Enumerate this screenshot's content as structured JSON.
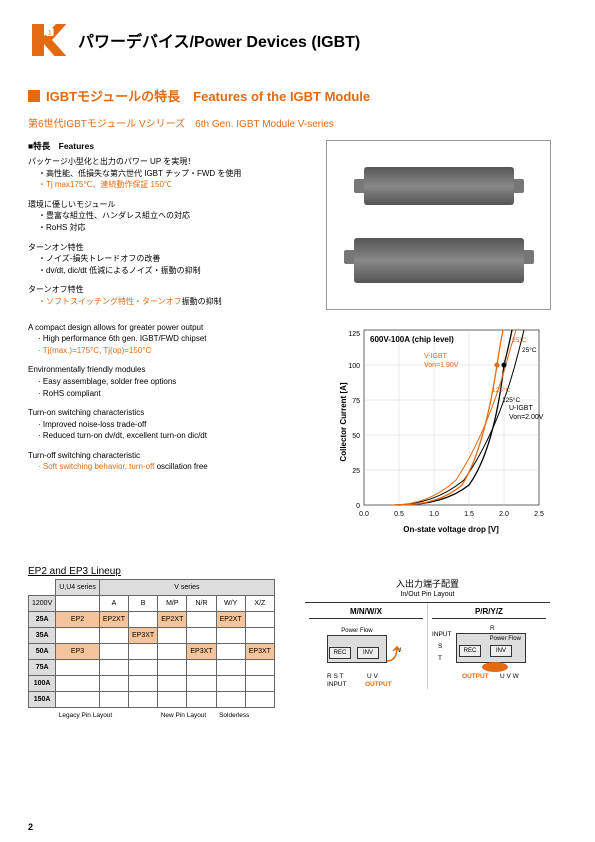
{
  "header": {
    "title": "パワーデバイス/Power Devices (IGBT)"
  },
  "section": {
    "title": "IGBTモジュールの特長　Features of the IGBT Module",
    "sub_series": "第6世代IGBTモジュール Vシリーズ　6th Gen. IGBT Module V-series"
  },
  "features": {
    "label": "■特長　Features",
    "jp": [
      {
        "head": "パッケージ小型化と出力のパワー UP を実現！",
        "bullets": [
          "・高性能、低損失な第六世代 IGBT チップ・FWD を使用"
        ],
        "orange": "・Tj max175℃、連続動作保証 150℃"
      },
      {
        "head": "環境に優しいモジュール",
        "bullets": [
          "・豊富な組立性、ハンダレス組立への対応",
          "・RoHS 対応"
        ]
      },
      {
        "head": "ターンオン特性",
        "bullets": [
          "・ノイズ-損失トレードオフの改善",
          "・dv/dt, dic/dt 低減によるノイズ・振動の抑制"
        ]
      },
      {
        "head": "ターンオフ特性",
        "bullets": [],
        "orange": "・ソフトスイッチング特性・ターンオフ",
        "orange_tail": "振動の抑制"
      }
    ],
    "en": [
      {
        "head": "A compact design allows for greater power output",
        "bullets": [
          "· High performance 6th gen. IGBT/FWD chipset"
        ],
        "orange": "· Tj(max.)=175°C, Tj(op)=150°C"
      },
      {
        "head": "Environmentally friendly modules",
        "bullets": [
          "· Easy assemblage, solder free options",
          "· RoHS compliant"
        ]
      },
      {
        "head": "Turn-on switching characteristics",
        "bullets": [
          "· Improved noise-loss trade-off",
          "· Reduced turn-on dv/dt, excellent turn-on dic/dt"
        ]
      },
      {
        "head": "Turn-off switching characteristic",
        "bullets": [],
        "orange": "· Soft switching behavior, turn-off",
        "orange_tail": " oscillation free"
      }
    ]
  },
  "chart": {
    "title": "600V-100A (chip level)",
    "ylabel": "Collector Current [A]",
    "xlabel": "On-state voltage drop [V]",
    "ylim": [
      0,
      125
    ],
    "xlim": [
      0,
      2.5
    ],
    "yticks": [
      0,
      25,
      50,
      75,
      100,
      125
    ],
    "xticks": [
      "0.0",
      "0.5",
      "1.0",
      "1.5",
      "2.0",
      "2.5"
    ],
    "annota": {
      "v_igbt": "V-IGBT",
      "v_von": "Von=1.90V",
      "u_igbt": "U-IGBT",
      "u_von": "Von=2.00V",
      "t25": "25°C",
      "t125": "125°C"
    },
    "colors": {
      "v25": "#e46a12",
      "v125": "#e46a12",
      "u25": "#000000",
      "u125": "#000000",
      "grid": "#cccccc",
      "axis": "#000000"
    }
  },
  "lineup": {
    "title": "EP2 and EP3 Lineup",
    "u_series": "U,U4 series",
    "v_series": "V series",
    "volt": "1200V",
    "cols_v": [
      "A",
      "B",
      "M/P",
      "N/R",
      "W/Y",
      "X/Z"
    ],
    "rows": [
      {
        "a": "25A",
        "u": "EP2",
        "v": [
          "EP2XT",
          "",
          "EP2XT",
          "",
          "EP2XT",
          ""
        ]
      },
      {
        "a": "35A",
        "u": "",
        "v": [
          "",
          "EP3XT",
          "",
          "",
          "",
          ""
        ]
      },
      {
        "a": "50A",
        "u": "EP3",
        "v": [
          "",
          "",
          "",
          "EP3XT",
          "",
          "EP3XT"
        ]
      },
      {
        "a": "75A",
        "u": "",
        "v": [
          "",
          "",
          "",
          "",
          "",
          ""
        ]
      },
      {
        "a": "100A",
        "u": "",
        "v": [
          "",
          "",
          "",
          "",
          "",
          ""
        ]
      },
      {
        "a": "150A",
        "u": "",
        "v": [
          "",
          "",
          "",
          "",
          "",
          ""
        ]
      }
    ],
    "foot": [
      "Legacy Pin Layout",
      "New Pin Layout",
      "Solderless"
    ]
  },
  "pinout": {
    "title": "入出力端子配置",
    "title_en": "In/Out  Pin  Layout",
    "left_hdr": "M/N/W/X",
    "right_hdr": "P/R/Y/Z",
    "rec": "REC",
    "inv": "INV",
    "power_flow": "Power Flow",
    "input": "INPUT",
    "output": "OUTPUT",
    "rst": "R S T",
    "rst2": "R",
    "st": "S",
    "t2": "T",
    "uvw": "U V W",
    "uv": "U V",
    "w": "W"
  },
  "page_number": "2"
}
